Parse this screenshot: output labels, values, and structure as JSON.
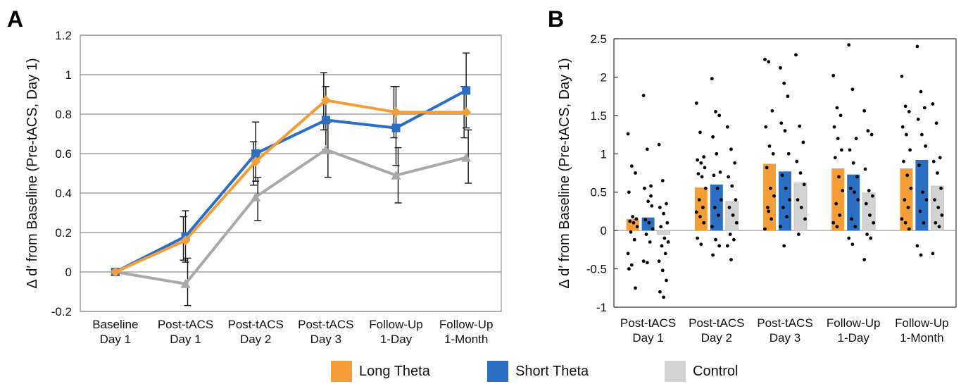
{
  "figure": {
    "panel_labels": [
      "A",
      "B"
    ],
    "legend": [
      {
        "label": "Long Theta",
        "color": "#f59d36"
      },
      {
        "label": "Short Theta",
        "color": "#2b6fc5"
      },
      {
        "label": "Control",
        "color": "#d3d3d3"
      }
    ]
  },
  "chart_data": [
    {
      "type": "line",
      "panel": "A",
      "title": "",
      "xlabel": "",
      "ylabel": "Δ d′ from Baseline (Pre-tACS, Day 1)",
      "categories": [
        [
          "Baseline",
          "Day 1"
        ],
        [
          "Post-tACS",
          "Day 1"
        ],
        [
          "Post-tACS",
          "Day 2"
        ],
        [
          "Post-tACS",
          "Day 3"
        ],
        [
          "Follow-Up",
          "1-Day"
        ],
        [
          "Follow-Up",
          "1-Month"
        ]
      ],
      "ylim": [
        -0.2,
        1.2
      ],
      "yticks": [
        -0.2,
        0,
        0.2,
        0.4,
        0.6,
        0.8,
        1,
        1.2
      ],
      "ytick_labels": [
        "-0.2",
        "0",
        "0.2",
        "0.4",
        "0.6",
        "0.8",
        "1",
        "1.2"
      ],
      "grid": true,
      "series": [
        {
          "name": "Long Theta",
          "color": "#f59d36",
          "marker": "diamond",
          "values": [
            0,
            0.16,
            0.56,
            0.87,
            0.81,
            0.81
          ],
          "err_low": [
            0,
            0.06,
            0.44,
            0.72,
            0.68,
            0.68
          ],
          "err_high": [
            0,
            0.28,
            0.66,
            1.01,
            0.94,
            0.94
          ]
        },
        {
          "name": "Short Theta",
          "color": "#2b6fc5",
          "marker": "square",
          "values": [
            0,
            0.18,
            0.6,
            0.77,
            0.73,
            0.92
          ],
          "err_low": [
            0,
            0.05,
            0.46,
            0.62,
            0.54,
            0.73
          ],
          "err_high": [
            0,
            0.31,
            0.76,
            0.94,
            0.94,
            1.11
          ]
        },
        {
          "name": "Control",
          "color": "#a9a9a9",
          "marker": "triangle",
          "values": [
            0,
            -0.06,
            0.38,
            0.62,
            0.49,
            0.58
          ],
          "err_low": [
            0,
            -0.17,
            0.26,
            0.48,
            0.35,
            0.45
          ],
          "err_high": [
            0,
            0.07,
            0.48,
            0.76,
            0.63,
            0.72
          ]
        }
      ]
    },
    {
      "type": "bar",
      "panel": "B",
      "title": "",
      "xlabel": "",
      "ylabel": "Δ d′ from Baseline (Pre-tACS, Day 1)",
      "categories": [
        [
          "Post-tACS",
          "Day 1"
        ],
        [
          "Post-tACS",
          "Day 2"
        ],
        [
          "Post-tACS",
          "Day 3"
        ],
        [
          "Follow-Up",
          "1-Day"
        ],
        [
          "Follow-Up",
          "1-Month"
        ]
      ],
      "ylim": [
        -1,
        2.5
      ],
      "yticks": [
        -1,
        -0.5,
        0,
        0.5,
        1,
        1.5,
        2,
        2.5
      ],
      "ytick_labels": [
        "-1",
        "-0.5",
        "0",
        "0.5",
        "1",
        "1.5",
        "2",
        "2.5"
      ],
      "grid": false,
      "series": [
        {
          "name": "Long Theta",
          "color": "#f59d36",
          "values": [
            0.15,
            0.56,
            0.87,
            0.81,
            0.81
          ]
        },
        {
          "name": "Short Theta",
          "color": "#2b6fc5",
          "values": [
            0.17,
            0.6,
            0.77,
            0.73,
            0.92
          ]
        },
        {
          "name": "Control",
          "color": "#d3d3d3",
          "values": [
            -0.05,
            0.38,
            0.62,
            0.49,
            0.58
          ]
        }
      ],
      "points": [
        [
          [
            1.26,
            0.84,
            0.75,
            0.5,
            0.18,
            0.15,
            0.12,
            0.1,
            0.05,
            -0.02,
            -0.12,
            -0.3,
            -0.45,
            -0.75,
            -0.5
          ],
          [
            1.76,
            1.06,
            0.58,
            0.55,
            0.38,
            0.32,
            0.14,
            0.1,
            0.02,
            -0.05,
            -0.15,
            -0.4,
            -0.42,
            0.45
          ],
          [
            1.12,
            0.65,
            0.35,
            0.3,
            0.22,
            0.1,
            0.05,
            -0.1,
            -0.15,
            -0.2,
            -0.3,
            -0.4,
            -0.52,
            -0.65,
            -0.8,
            -0.87
          ]
        ],
        [
          [
            1.66,
            1.28,
            0.96,
            0.92,
            0.88,
            0.82,
            0.74,
            0.7,
            0.55,
            0.4,
            0.3,
            0.24,
            0.18,
            0.1,
            -0.1,
            -0.18
          ],
          [
            1.98,
            1.55,
            1.5,
            1.22,
            1.0,
            0.76,
            0.72,
            0.55,
            0.4,
            0.3,
            0.2,
            0.05,
            -0.12,
            -0.2,
            -0.32
          ],
          [
            1.35,
            1.06,
            0.88,
            0.7,
            0.58,
            0.4,
            0.3,
            0.2,
            0.1,
            -0.05,
            -0.12,
            -0.2,
            -0.38
          ]
        ],
        [
          [
            2.23,
            2.2,
            1.56,
            1.35,
            1.1,
            1.0,
            0.82,
            0.55,
            0.45,
            0.3,
            0.15,
            0.02,
            0.25
          ],
          [
            2.12,
            1.92,
            1.75,
            1.4,
            1.3,
            1.0,
            0.72,
            0.55,
            0.4,
            0.3,
            0.18,
            0.05,
            -0.2
          ],
          [
            2.29,
            1.36,
            1.15,
            0.9,
            0.75,
            0.6,
            0.4,
            0.3,
            0.15,
            -0.05
          ]
        ],
        [
          [
            2.02,
            1.6,
            1.5,
            1.35,
            1.2,
            1.05,
            0.95,
            0.7,
            0.52,
            0.35,
            0.2,
            0.1,
            0.05
          ],
          [
            2.42,
            1.84,
            1.2,
            1.05,
            0.88,
            0.7,
            0.55,
            0.5,
            0.4,
            0.15,
            0.05,
            -0.1,
            -0.18
          ],
          [
            1.56,
            1.3,
            1.25,
            0.8,
            0.52,
            0.45,
            0.35,
            0.2,
            0.1,
            -0.05,
            -0.1,
            -0.38
          ]
        ],
        [
          [
            2.01,
            1.62,
            1.55,
            1.35,
            1.25,
            1.05,
            0.9,
            0.72,
            0.55,
            0.4,
            0.3,
            0.15,
            0.1,
            0.02
          ],
          [
            2.4,
            1.81,
            1.6,
            1.45,
            1.25,
            1.1,
            0.85,
            0.5,
            0.4,
            0.25,
            0.1,
            -0.2,
            -0.32
          ],
          [
            1.65,
            1.4,
            0.95,
            0.9,
            0.75,
            0.55,
            0.4,
            0.3,
            0.2,
            0.1,
            0.05,
            -0.3
          ]
        ]
      ]
    }
  ]
}
